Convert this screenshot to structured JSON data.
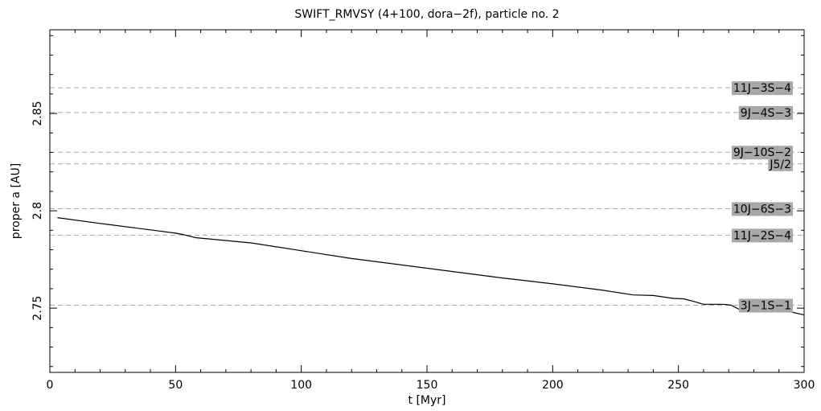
{
  "chart_data": {
    "type": "line",
    "title": "SWIFT_RMVSY (4+100, dora−2f), particle no. 2",
    "xlabel": "t [Myr]",
    "ylabel": "proper a [AU]",
    "xlim": [
      0,
      300
    ],
    "ylim": [
      2.717,
      2.893
    ],
    "xticks": [
      0,
      50,
      100,
      150,
      200,
      250,
      300
    ],
    "xtick_labels": [
      "0",
      "50",
      "100",
      "150",
      "200",
      "250",
      "300"
    ],
    "yticks": [
      2.75,
      2.8,
      2.85
    ],
    "ytick_labels": [
      "2.75",
      "2.8",
      "2.85"
    ],
    "x_minor_step": 10,
    "y_minor_step": 0.01,
    "grid": false,
    "series": [
      {
        "x": [
          3,
          20,
          40,
          50,
          53,
          58,
          80,
          100,
          120,
          150,
          180,
          200,
          220,
          232,
          240,
          248,
          252,
          256,
          260,
          268,
          271,
          274,
          277,
          280,
          290,
          295,
          300
        ],
        "y": [
          2.7965,
          2.7935,
          2.7902,
          2.7885,
          2.7878,
          2.7862,
          2.7835,
          2.7795,
          2.7755,
          2.7705,
          2.7655,
          2.7625,
          2.7592,
          2.7568,
          2.7565,
          2.755,
          2.7548,
          2.7535,
          2.752,
          2.752,
          2.7515,
          2.7495,
          2.7485,
          2.7485,
          2.7485,
          2.748,
          2.7465
        ]
      }
    ],
    "resonances": [
      {
        "label": "11J−3S−4",
        "a": 2.8632
      },
      {
        "label": "9J−4S−3",
        "a": 2.8505
      },
      {
        "label": "9J−10S−2",
        "a": 2.8301
      },
      {
        "label": "J5/2",
        "a": 2.8241
      },
      {
        "label": "10J−6S−3",
        "a": 2.8011
      },
      {
        "label": "11J−2S−4",
        "a": 2.7875
      },
      {
        "label": "3J−1S−1",
        "a": 2.7515
      }
    ],
    "resonance_line_color": "#a8a8a8",
    "resonance_label_bg": "#a8a8a8",
    "line_color": "#000000"
  }
}
